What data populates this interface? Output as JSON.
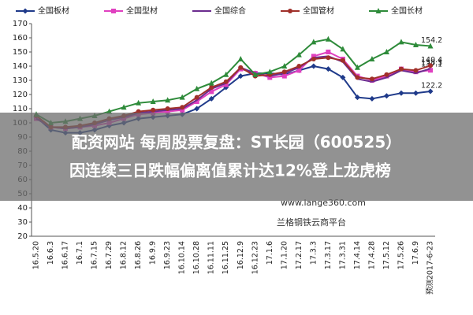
{
  "chart_data": {
    "type": "line",
    "categories": [
      "16.5.20",
      "16.6.3",
      "16.6.17",
      "16.7.1",
      "16.7.15",
      "16.7.29",
      "16.8.12",
      "16.8.26",
      "16.9.9",
      "16.9.23",
      "16.10.14",
      "16.10.28",
      "16.11.11",
      "16.11.25",
      "16.12.9",
      "16.12.23",
      "17.1.6",
      "17.1.20",
      "17.2.17",
      "17.3.3",
      "17.3.17",
      "17.3.31",
      "17.4.14",
      "17.4.28",
      "17.5.12",
      "17.5.26",
      "17.6.9",
      "预测2017-6-23"
    ],
    "series": [
      {
        "name": "全国板材",
        "color": "#1f3a8a",
        "marker": "diamond",
        "values": [
          104,
          95,
          93,
          93,
          95,
          98,
          100,
          103,
          104,
          105,
          106,
          110,
          117,
          125,
          133,
          135,
          135,
          134,
          137,
          140,
          138,
          132,
          118,
          117,
          119,
          121,
          121,
          122.2
        ]
      },
      {
        "name": "全国型材",
        "color": "#e040c0",
        "marker": "square",
        "values": [
          103,
          97,
          96,
          97,
          98,
          100,
          103,
          106,
          107,
          108,
          109,
          115,
          122,
          127,
          138,
          135,
          132,
          133,
          137,
          147,
          150,
          145,
          133,
          130,
          133,
          138,
          136,
          137.1
        ]
      },
      {
        "name": "全国综合",
        "color": "#6b2c8f",
        "marker": "none",
        "values": [
          103,
          97,
          96,
          97,
          99,
          102,
          104,
          107,
          108,
          109,
          110,
          116,
          124,
          128,
          139,
          135,
          133,
          135,
          139,
          146,
          147,
          143,
          131,
          129,
          132,
          137,
          135,
          138.3
        ]
      },
      {
        "name": "全国管材",
        "color": "#a0302a",
        "marker": "circle",
        "values": [
          105,
          97,
          97,
          98,
          100,
          103,
          105,
          108,
          109,
          110,
          111,
          118,
          125,
          129,
          139,
          133,
          134,
          136,
          140,
          145,
          146,
          144,
          132,
          131,
          134,
          138,
          137,
          140.4
        ]
      },
      {
        "name": "全国长材",
        "color": "#2e8b3a",
        "marker": "triangle",
        "values": [
          106,
          100,
          101,
          103,
          105,
          108,
          111,
          114,
          115,
          116,
          118,
          124,
          128,
          134,
          145,
          134,
          136,
          140,
          148,
          157,
          159,
          152,
          139,
          145,
          150,
          157,
          155,
          154.2
        ]
      }
    ],
    "ylim": [
      20,
      170
    ],
    "yticks": [
      20,
      30,
      40,
      50,
      60,
      70,
      80,
      90,
      100,
      110,
      120,
      130,
      140,
      150,
      160,
      170
    ],
    "grid": false,
    "overlay": {
      "headline": [
        "配资网站 每周股票复盘：ST长园（600525）",
        "因连续三日跌幅偏离值累计达12%登上龙虎榜"
      ],
      "watermark": [
        "www.lange360.com",
        "兰格钢铁云商平台"
      ]
    }
  }
}
